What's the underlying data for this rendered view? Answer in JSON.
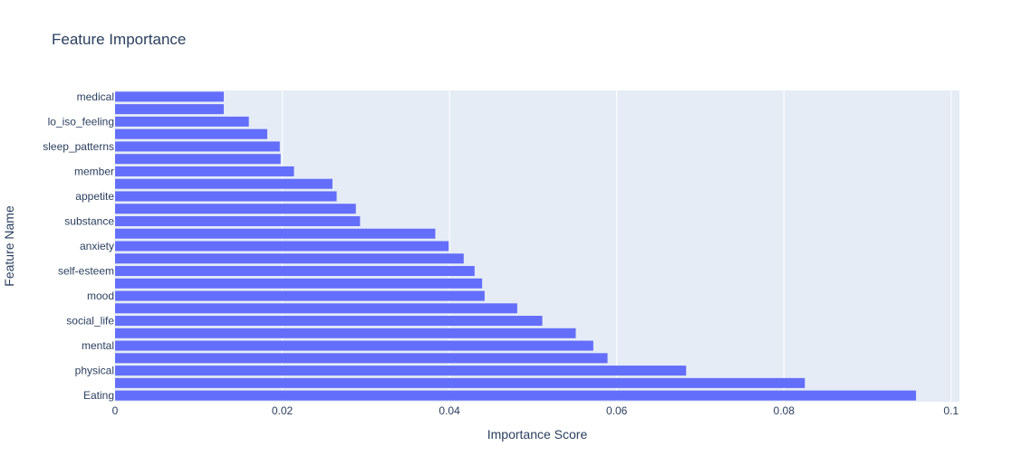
{
  "chart_data": {
    "type": "bar",
    "orientation": "horizontal",
    "title": "Feature Importance",
    "xlabel": "Importance Score",
    "ylabel": "Feature Name",
    "xlim": [
      0,
      0.101
    ],
    "xticks": [
      0,
      0.02,
      0.04,
      0.06,
      0.08,
      0.1
    ],
    "xtick_labels": [
      "0",
      "0.02",
      "0.04",
      "0.06",
      "0.08",
      "0.1"
    ],
    "grid": true,
    "bar_color": "#636efa",
    "plot_background": "#e5ecf6",
    "categories": [
      "medical",
      "",
      "lo_iso_feeling",
      "",
      "sleep_patterns",
      "",
      "member",
      "",
      "appetite",
      "",
      "substance",
      "",
      "anxiety",
      "",
      "self-esteem",
      "",
      "mood",
      "",
      "social_life",
      "",
      "mental",
      "",
      "physical",
      "",
      "Eating"
    ],
    "values": [
      0.013,
      0.013,
      0.016,
      0.0182,
      0.0197,
      0.0198,
      0.0214,
      0.026,
      0.0265,
      0.0288,
      0.0293,
      0.0383,
      0.0399,
      0.0417,
      0.043,
      0.0439,
      0.0442,
      0.0481,
      0.0511,
      0.0551,
      0.0572,
      0.0589,
      0.0683,
      0.0825,
      0.0958
    ]
  }
}
